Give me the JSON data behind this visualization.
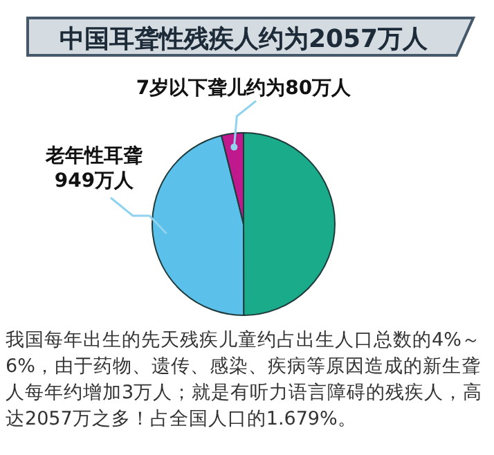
{
  "chart_data": {
    "type": "pie",
    "title": "中国耳聋性残疾人约为2057万人",
    "categories": [
      null,
      "老年性耳聋",
      "7岁以下聋儿约为"
    ],
    "values": [
      1028,
      949,
      80
    ],
    "value_labels": [
      null,
      "949万人",
      "80万人"
    ],
    "colors": [
      "#1aab8a",
      "#5bc0ea",
      "#c0198e"
    ],
    "legend": false,
    "annotations": [
      "我国每年出生的先天残疾儿童约占出生人口总数的4%～6%，由于药物、遗传、感染、疾病等原因造成的新生聋人每年约增加3万人；就是有听力语言障碍的残疾人，高达2057万之多！占全国人口的1.679%。"
    ]
  }
}
